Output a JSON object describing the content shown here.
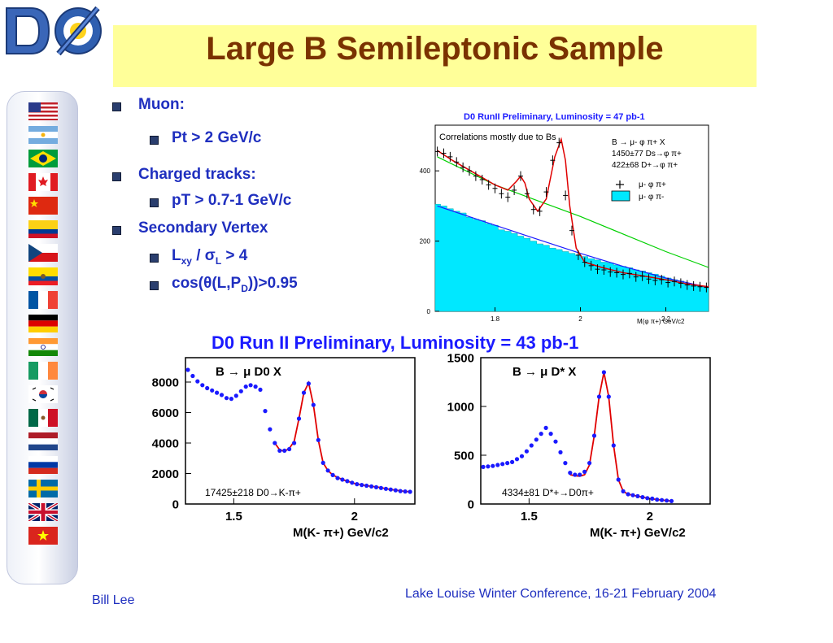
{
  "title": "Large B Semileptonic Sample",
  "logo_text": "DØ",
  "bullets": {
    "muon": "Muon:",
    "pt_muon": "Pt > 2 GeV/c",
    "charged": "Charged tracks:",
    "pt_tracks": "pT > 0.7-1 GeV/c",
    "secondary": "Secondary Vertex",
    "lxy_a": "L",
    "lxy_sub": "xy",
    "lxy_b": " / σ",
    "lxy_sub2": "L",
    "lxy_c": " > 4",
    "cos_a": "cos(θ(L,P",
    "cos_sub": "D",
    "cos_b": "))>0.95"
  },
  "footer": {
    "author": "Bill Lee",
    "conference": "Lake Louise Winter Conference, 16-21 February 2004"
  },
  "flags": [
    "usa",
    "argentina",
    "brazil",
    "canada",
    "china",
    "colombia",
    "czech",
    "ecuador",
    "france",
    "germany",
    "india",
    "ireland",
    "korea",
    "mexico",
    "netherlands",
    "russia",
    "sweden",
    "uk",
    "vietnam"
  ],
  "colors": {
    "title": "#7a3200",
    "title_band": "#ffff99",
    "bullet_text": "#1f2fbf",
    "fill_cyan": "#00e8ff",
    "fit_red": "#e00000",
    "bg_green": "#00d000",
    "points_blue": "#1a1aff"
  },
  "chart_data": [
    {
      "type": "line",
      "title": "D0 RunII  Preliminary, Luminosity = 47 pb-1",
      "annotation": "Correlations mostly due to Bs",
      "xlabel": "M(φ π+) GeV/c2",
      "xlim": [
        1.66,
        2.3
      ],
      "ylim": [
        0,
        530
      ],
      "xticks": [
        "1.8",
        "2",
        "2.2"
      ],
      "xtick_values": [
        1.8,
        2.0,
        2.2
      ],
      "yticks": [
        "0",
        "200",
        "400"
      ],
      "ytick_values": [
        0,
        200,
        400
      ],
      "legend": {
        "header": "B → μ- φ π+ X",
        "lines": [
          "1450±77  Ds→φ π+",
          "422±68  D+→φ π+"
        ],
        "entries": [
          "μ- φ π+",
          "μ- φ π-"
        ]
      },
      "series": [
        {
          "name": "μ- φ π+",
          "x": [
            1.665,
            1.68,
            1.695,
            1.71,
            1.725,
            1.74,
            1.755,
            1.77,
            1.785,
            1.8,
            1.815,
            1.83,
            1.845,
            1.86,
            1.875,
            1.89,
            1.905,
            1.92,
            1.935,
            1.95,
            1.965,
            1.98,
            1.995,
            2.01,
            2.025,
            2.04,
            2.055,
            2.07,
            2.085,
            2.1,
            2.115,
            2.13,
            2.145,
            2.16,
            2.175,
            2.19,
            2.205,
            2.22,
            2.235,
            2.25,
            2.265,
            2.28,
            2.295
          ],
          "y": [
            455,
            450,
            440,
            425,
            410,
            400,
            385,
            375,
            360,
            350,
            335,
            325,
            345,
            385,
            335,
            290,
            285,
            340,
            430,
            480,
            330,
            230,
            160,
            140,
            130,
            120,
            118,
            112,
            110,
            105,
            108,
            98,
            100,
            92,
            88,
            90,
            82,
            85,
            80,
            75,
            72,
            70,
            68
          ]
        },
        {
          "name": "μ- φ π-",
          "x": [
            1.665,
            1.68,
            1.695,
            1.71,
            1.725,
            1.74,
            1.755,
            1.77,
            1.785,
            1.8,
            1.815,
            1.83,
            1.845,
            1.86,
            1.875,
            1.89,
            1.905,
            1.92,
            1.935,
            1.95,
            1.965,
            1.98,
            1.995,
            2.01,
            2.025,
            2.04,
            2.055,
            2.07,
            2.085,
            2.1,
            2.115,
            2.13,
            2.145,
            2.16,
            2.175,
            2.19,
            2.205,
            2.22,
            2.235,
            2.25,
            2.265,
            2.28,
            2.295
          ],
          "y": [
            305,
            300,
            292,
            285,
            280,
            268,
            262,
            258,
            250,
            245,
            232,
            228,
            222,
            214,
            208,
            200,
            192,
            188,
            180,
            176,
            170,
            165,
            160,
            156,
            150,
            146,
            140,
            138,
            132,
            128,
            124,
            118,
            115,
            110,
            106,
            100,
            95,
            90,
            86,
            80,
            76,
            72,
            68
          ]
        }
      ],
      "fit": {
        "name": "fit",
        "x": [
          1.665,
          1.7,
          1.75,
          1.8,
          1.83,
          1.85,
          1.86,
          1.87,
          1.88,
          1.9,
          1.92,
          1.94,
          1.955,
          1.965,
          1.975,
          1.99,
          2.01,
          2.05,
          2.1,
          2.15,
          2.2,
          2.25,
          2.3
        ],
        "y": [
          458,
          430,
          395,
          360,
          345,
          370,
          385,
          365,
          320,
          285,
          320,
          440,
          490,
          430,
          300,
          180,
          140,
          125,
          110,
          100,
          90,
          78,
          70
        ]
      },
      "background_fit": {
        "x": [
          1.665,
          1.8,
          1.9,
          2.0,
          2.1,
          2.2,
          2.3
        ],
        "y": [
          440,
          360,
          315,
          270,
          220,
          170,
          125
        ]
      },
      "background_fit_lower": {
        "x": [
          1.665,
          1.8,
          1.9,
          2.0,
          2.1,
          2.2,
          2.3
        ],
        "y": [
          300,
          245,
          205,
          165,
          128,
          95,
          68
        ]
      }
    },
    {
      "type": "scatter",
      "header": "D0 Run II  Preliminary, Luminosity = 43 pb-1",
      "label": "B → μ D0 X",
      "annotation": "17425±218  D0→K-π+",
      "xlabel": "M(K- π+) GeV/c2",
      "xlim": [
        1.3,
        2.25
      ],
      "ylim": [
        0,
        9600
      ],
      "xticks": [
        "1.5",
        "2"
      ],
      "xtick_values": [
        1.5,
        2.0
      ],
      "yticks": [
        "0",
        "2000",
        "4000",
        "6000",
        "8000"
      ],
      "ytick_values": [
        0,
        2000,
        4000,
        6000,
        8000
      ],
      "points": {
        "x": [
          1.31,
          1.33,
          1.35,
          1.37,
          1.39,
          1.41,
          1.43,
          1.45,
          1.47,
          1.49,
          1.51,
          1.53,
          1.55,
          1.57,
          1.59,
          1.61,
          1.63,
          1.65,
          1.67,
          1.69,
          1.71,
          1.73,
          1.75,
          1.77,
          1.79,
          1.81,
          1.83,
          1.85,
          1.87,
          1.89,
          1.91,
          1.93,
          1.95,
          1.97,
          1.99,
          2.01,
          2.03,
          2.05,
          2.07,
          2.09,
          2.11,
          2.13,
          2.15,
          2.17,
          2.19,
          2.21,
          2.23
        ],
        "y": [
          8800,
          8400,
          8050,
          7800,
          7600,
          7450,
          7300,
          7150,
          6950,
          6900,
          7100,
          7400,
          7700,
          7800,
          7700,
          7500,
          6100,
          4900,
          4000,
          3500,
          3500,
          3600,
          4000,
          5600,
          7300,
          7900,
          6500,
          4200,
          2700,
          2200,
          1900,
          1700,
          1600,
          1500,
          1400,
          1300,
          1250,
          1200,
          1150,
          1100,
          1050,
          1000,
          950,
          900,
          850,
          820,
          800
        ]
      },
      "fit": {
        "x": [
          1.67,
          1.69,
          1.71,
          1.73,
          1.75,
          1.77,
          1.79,
          1.81,
          1.83,
          1.85,
          1.87,
          1.89,
          1.91,
          1.95,
          2.0,
          2.05,
          2.1,
          2.15,
          2.2,
          2.23
        ],
        "y": [
          4000,
          3550,
          3450,
          3650,
          4100,
          5600,
          7300,
          7950,
          6500,
          4200,
          2700,
          2200,
          1900,
          1600,
          1350,
          1200,
          1100,
          950,
          850,
          800
        ]
      }
    },
    {
      "type": "scatter",
      "label": "B → μ D* X",
      "annotation": "4334±81  D*+→D0π+",
      "xlabel": "M(K- π+) GeV/c2",
      "xlim": [
        1.3,
        2.25
      ],
      "ylim": [
        0,
        1500
      ],
      "xticks": [
        "1.5",
        "2"
      ],
      "xtick_values": [
        1.5,
        2.0
      ],
      "yticks": [
        "0",
        "500",
        "1000",
        "1500"
      ],
      "ytick_values": [
        0,
        500,
        1000,
        1500
      ],
      "points": {
        "x": [
          1.31,
          1.33,
          1.35,
          1.37,
          1.39,
          1.41,
          1.43,
          1.45,
          1.47,
          1.49,
          1.51,
          1.53,
          1.55,
          1.57,
          1.59,
          1.61,
          1.63,
          1.65,
          1.67,
          1.69,
          1.71,
          1.73,
          1.75,
          1.77,
          1.79,
          1.81,
          1.83,
          1.85,
          1.87,
          1.89,
          1.91,
          1.93,
          1.95,
          1.97,
          1.99,
          2.01,
          2.03,
          2.05,
          2.07,
          2.09
        ],
        "y": [
          380,
          385,
          390,
          400,
          410,
          420,
          430,
          460,
          490,
          540,
          600,
          660,
          720,
          780,
          720,
          640,
          530,
          420,
          320,
          300,
          300,
          330,
          420,
          700,
          1100,
          1350,
          1100,
          600,
          250,
          130,
          100,
          90,
          80,
          70,
          60,
          55,
          45,
          40,
          35,
          30
        ]
      },
      "fit": {
        "x": [
          1.67,
          1.69,
          1.71,
          1.73,
          1.75,
          1.77,
          1.79,
          1.81,
          1.83,
          1.85,
          1.87,
          1.89,
          1.91,
          1.95,
          2.0,
          2.05,
          2.09
        ],
        "y": [
          300,
          290,
          285,
          300,
          400,
          700,
          1100,
          1350,
          1100,
          600,
          250,
          130,
          100,
          80,
          55,
          40,
          30
        ]
      }
    }
  ]
}
